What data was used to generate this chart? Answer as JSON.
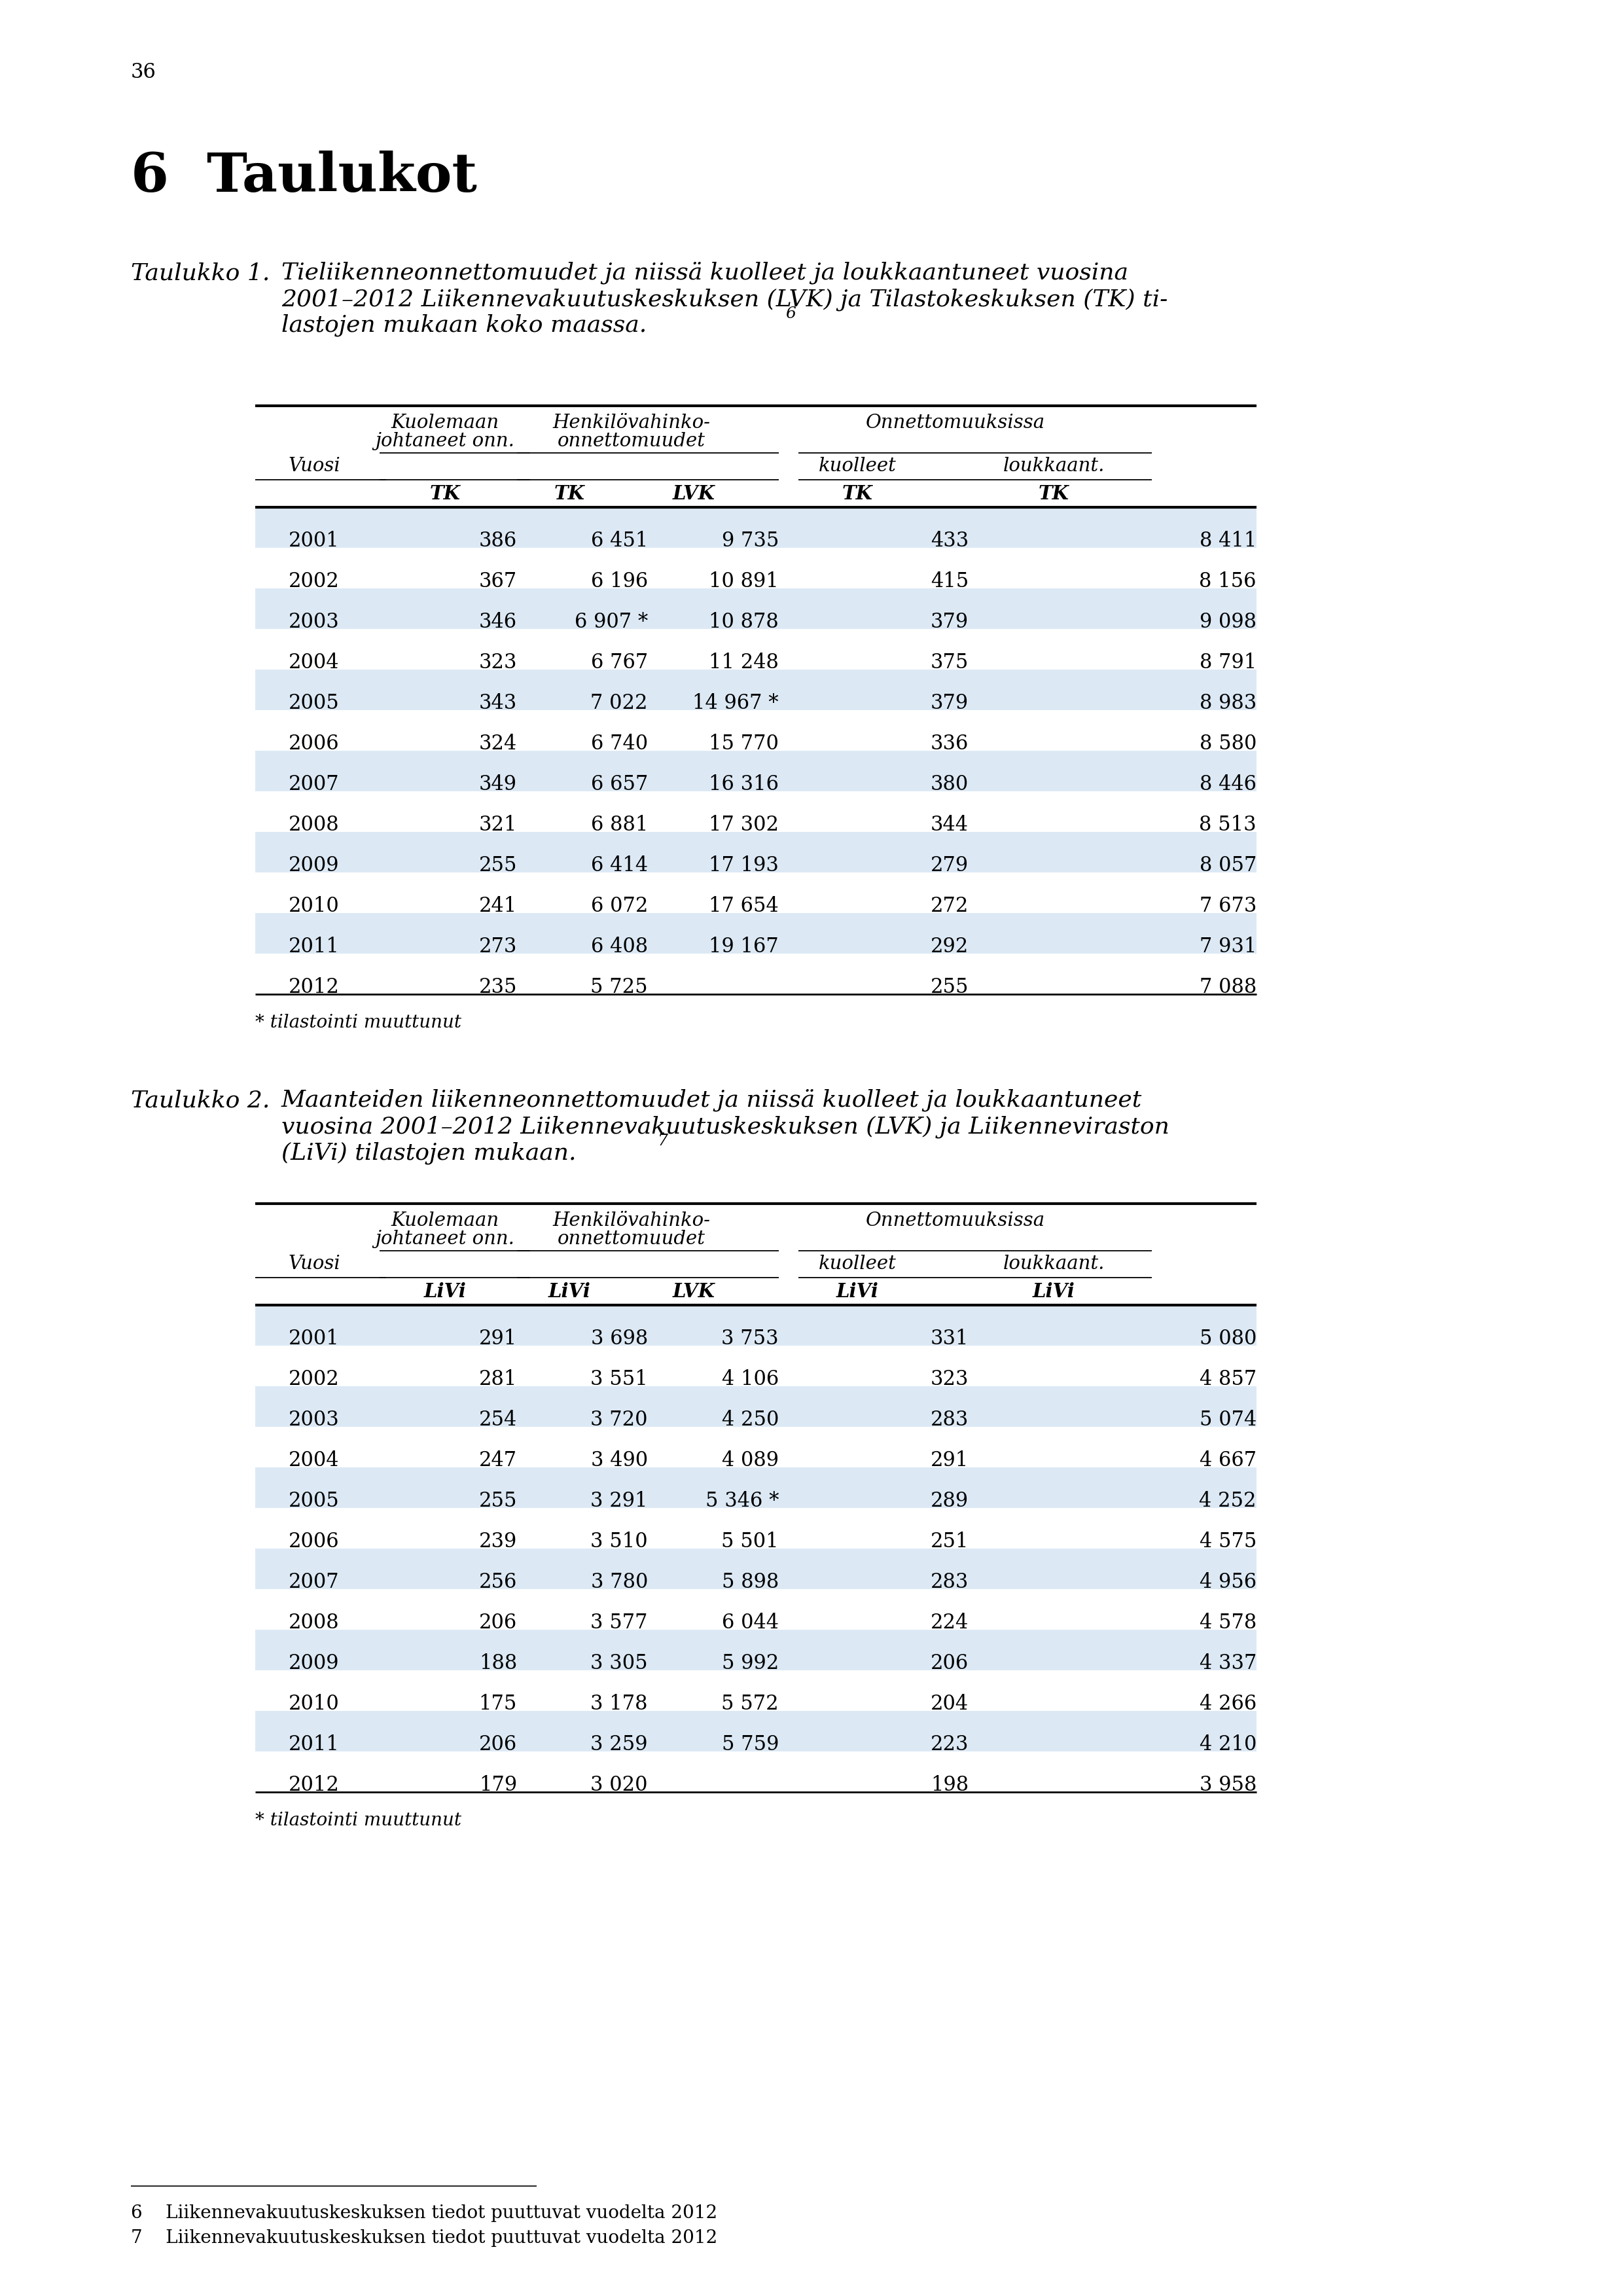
{
  "page_number": "36",
  "chapter_title": "6  Taulukot",
  "table1": {
    "caption_label": "Taulukko 1.",
    "caption_text_line1": "Tieliikenneonnettomuudet ja niissä kuolleet ja loukkaantuneet vuosina",
    "caption_text_line2": "2001–2012 Liikennevakuutuskeskuksen (LVK) ja Tilastokeskuksen (TK) ti-",
    "caption_text_line3": "lastojen mukaan koko maassa.",
    "caption_superscript": "6",
    "subheader_col2": "TK",
    "subheader_col3a": "TK",
    "subheader_col3b": "LVK",
    "subheader_col4a": "TK",
    "subheader_col4b": "TK",
    "rows": [
      [
        "2001",
        "386",
        "6 451",
        "9 735",
        "433",
        "8 411"
      ],
      [
        "2002",
        "367",
        "6 196",
        "10 891",
        "415",
        "8 156"
      ],
      [
        "2003",
        "346",
        "6 907 *",
        "10 878",
        "379",
        "9 098"
      ],
      [
        "2004",
        "323",
        "6 767",
        "11 248",
        "375",
        "8 791"
      ],
      [
        "2005",
        "343",
        "7 022",
        "14 967 *",
        "379",
        "8 983"
      ],
      [
        "2006",
        "324",
        "6 740",
        "15 770",
        "336",
        "8 580"
      ],
      [
        "2007",
        "349",
        "6 657",
        "16 316",
        "380",
        "8 446"
      ],
      [
        "2008",
        "321",
        "6 881",
        "17 302",
        "344",
        "8 513"
      ],
      [
        "2009",
        "255",
        "6 414",
        "17 193",
        "279",
        "8 057"
      ],
      [
        "2010",
        "241",
        "6 072",
        "17 654",
        "272",
        "7 673"
      ],
      [
        "2011",
        "273",
        "6 408",
        "19 167",
        "292",
        "7 931"
      ],
      [
        "2012",
        "235",
        "5 725",
        "",
        "255",
        "7 088"
      ]
    ],
    "footnote": "* tilastointi muuttunut"
  },
  "table2": {
    "caption_label": "Taulukko 2.",
    "caption_text_line1": "Maanteiden liikenneonnettomuudet ja niissä kuolleet ja loukkaantuneet",
    "caption_text_line2": "vuosina 2001–2012 Liikennevakuutuskeskuksen (LVK) ja Liikenneviraston",
    "caption_text_line3": "(LiVi) tilastojen mukaan.",
    "caption_superscript": "7",
    "subheader_col2": "LiVi",
    "subheader_col3a": "LiVi",
    "subheader_col3b": "LVK",
    "subheader_col4a": "LiVi",
    "subheader_col4b": "LiVi",
    "rows": [
      [
        "2001",
        "291",
        "3 698",
        "3 753",
        "331",
        "5 080"
      ],
      [
        "2002",
        "281",
        "3 551",
        "4 106",
        "323",
        "4 857"
      ],
      [
        "2003",
        "254",
        "3 720",
        "4 250",
        "283",
        "5 074"
      ],
      [
        "2004",
        "247",
        "3 490",
        "4 089",
        "291",
        "4 667"
      ],
      [
        "2005",
        "255",
        "3 291",
        "5 346 *",
        "289",
        "4 252"
      ],
      [
        "2006",
        "239",
        "3 510",
        "5 501",
        "251",
        "4 575"
      ],
      [
        "2007",
        "256",
        "3 780",
        "5 898",
        "283",
        "4 956"
      ],
      [
        "2008",
        "206",
        "3 577",
        "6 044",
        "224",
        "4 578"
      ],
      [
        "2009",
        "188",
        "3 305",
        "5 992",
        "206",
        "4 337"
      ],
      [
        "2010",
        "175",
        "3 178",
        "5 572",
        "204",
        "4 266"
      ],
      [
        "2011",
        "206",
        "3 259",
        "5 759",
        "223",
        "4 210"
      ],
      [
        "2012",
        "179",
        "3 020",
        "",
        "198",
        "3 958"
      ]
    ],
    "footnote": "* tilastointi muuttunut"
  },
  "footnotes": [
    "6    Liikennevakuutuskeskuksen tiedot puuttuvat vuodelta 2012",
    "7    Liikennevakuutuskeskuksen tiedot puuttuvat vuodelta 2012"
  ],
  "bg_color": "#ffffff",
  "stripe_color": "#dce9f5"
}
